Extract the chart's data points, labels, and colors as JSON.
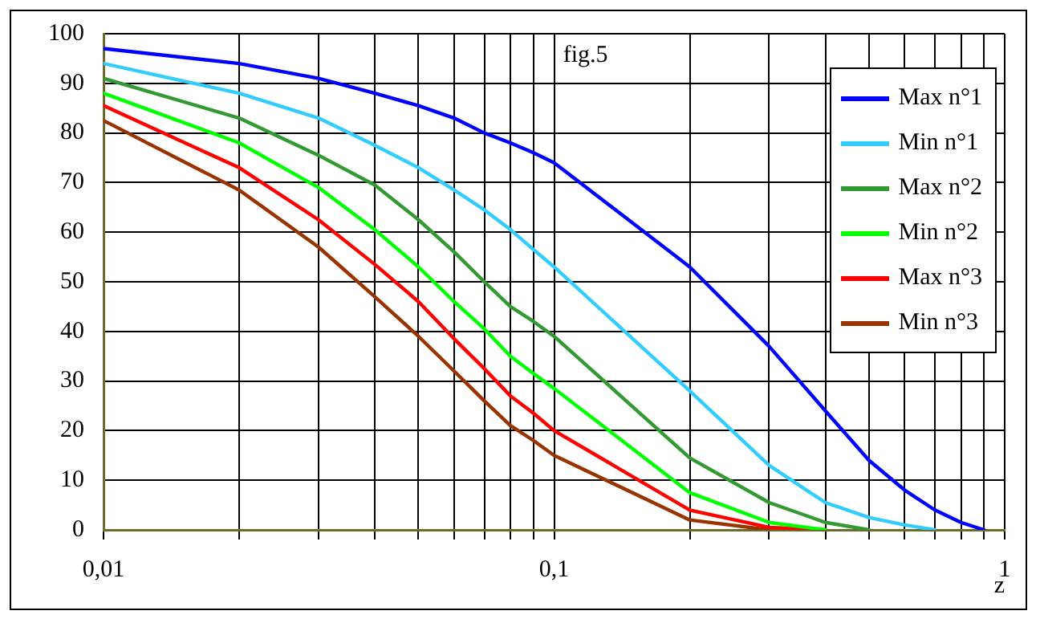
{
  "chart_data": {
    "type": "line",
    "xlabel": "z",
    "annotations": [
      "fig.5"
    ],
    "log": "x",
    "grid": true,
    "legend": "top right",
    "marker": "none",
    "line_style": "solid",
    "xlim": [
      0.01,
      1
    ],
    "xticks": [
      {
        "value": 0.01,
        "label": "0,01"
      },
      {
        "value": 0.02,
        "label": null
      },
      {
        "value": 0.03,
        "label": null
      },
      {
        "value": 0.04,
        "label": null
      },
      {
        "value": 0.05,
        "label": null
      },
      {
        "value": 0.06,
        "label": null
      },
      {
        "value": 0.07,
        "label": null
      },
      {
        "value": 0.08,
        "label": null
      },
      {
        "value": 0.09,
        "label": null
      },
      {
        "value": 0.1,
        "label": "0,1"
      },
      {
        "value": 0.2,
        "label": null
      },
      {
        "value": 0.3,
        "label": null
      },
      {
        "value": 0.4,
        "label": null
      },
      {
        "value": 0.5,
        "label": null
      },
      {
        "value": 0.6,
        "label": null
      },
      {
        "value": 0.7,
        "label": null
      },
      {
        "value": 0.8,
        "label": null
      },
      {
        "value": 0.9,
        "label": null
      },
      {
        "value": 1,
        "label": "1"
      }
    ],
    "ylim": [
      0,
      100
    ],
    "yticks": [
      0,
      10,
      20,
      30,
      40,
      50,
      60,
      70,
      80,
      90,
      100
    ],
    "x": [
      0.01,
      0.02,
      0.03,
      0.04,
      0.05,
      0.06,
      0.07,
      0.08,
      0.09,
      0.1,
      0.2,
      0.3,
      0.4,
      0.5,
      0.6,
      0.7,
      0.8,
      0.9
    ],
    "series": [
      {
        "name": "Max n°1",
        "color": "#0000ff",
        "values": [
          97,
          94,
          91,
          88,
          85.5,
          83,
          80,
          78,
          76,
          74,
          53,
          37,
          24,
          14,
          8,
          4,
          1.5,
          0
        ]
      },
      {
        "name": "Min n°1",
        "color": "#33ccff",
        "values": [
          94,
          88,
          83,
          77.5,
          73,
          68.5,
          64.5,
          60.5,
          56.5,
          53,
          28,
          13,
          5.5,
          2.5,
          1,
          0,
          null,
          null
        ]
      },
      {
        "name": "Max n°2",
        "color": "#339933",
        "values": [
          91,
          83,
          75.5,
          69.5,
          62.5,
          56,
          50,
          45,
          42,
          39,
          14.5,
          5.5,
          1.5,
          0,
          null,
          null,
          null,
          null
        ]
      },
      {
        "name": "Min n°2",
        "color": "#00ff00",
        "values": [
          88,
          78,
          69,
          60.5,
          53,
          46,
          40.5,
          35,
          31.5,
          28.5,
          7.5,
          1.5,
          0,
          null,
          null,
          null,
          null,
          null
        ]
      },
      {
        "name": "Max n°3",
        "color": "#ff0000",
        "values": [
          85.5,
          73,
          62.5,
          53.5,
          46,
          38.5,
          32.5,
          27,
          23.5,
          20,
          4,
          0.5,
          0,
          null,
          null,
          null,
          null,
          null
        ]
      },
      {
        "name": "Min n°3",
        "color": "#993300",
        "values": [
          82.5,
          68.5,
          57,
          47,
          39,
          32,
          26,
          21,
          18,
          15,
          2,
          0,
          null,
          null,
          null,
          null,
          null,
          null
        ]
      }
    ]
  }
}
